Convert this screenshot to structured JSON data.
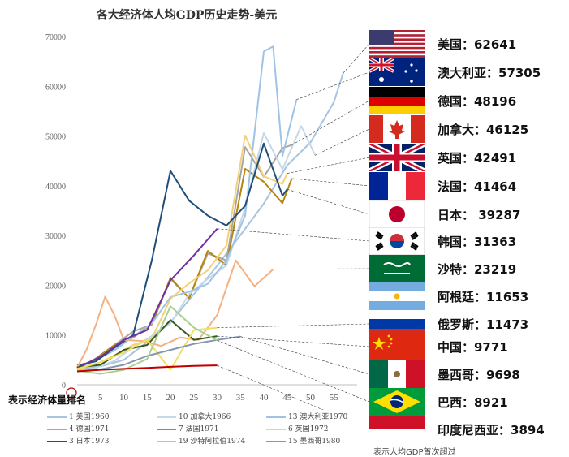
{
  "chart_data": {
    "type": "line",
    "title": "各大经济体人均GDP历史走势-美元",
    "y_ticks": [
      "0",
      "10000",
      "20000",
      "30000",
      "40000",
      "50000",
      "60000",
      "70000"
    ],
    "x_ticks": [
      "5",
      "10",
      "15",
      "20",
      "25",
      "30",
      "35",
      "40",
      "45",
      "50",
      "55"
    ],
    "xlim": [
      0,
      60
    ],
    "ylim": [
      0,
      70000
    ],
    "rank_note": "表示经济体量排名",
    "series": [
      {
        "name": "1 美国1960",
        "color": "#a8c4e0",
        "x": [
          0,
          5,
          10,
          15,
          20,
          25,
          30,
          35,
          40,
          45,
          50,
          55,
          57
        ],
        "y": [
          3000,
          3700,
          5000,
          8600,
          12600,
          18200,
          23900,
          30100,
          36400,
          44100,
          48700,
          56800,
          62641
        ]
      },
      {
        "name": "4 德国1971",
        "color": "#a6a6a6",
        "x": [
          0,
          4,
          8,
          12,
          16,
          20,
          24,
          28,
          32,
          36,
          40,
          44,
          46
        ],
        "y": [
          3000,
          5300,
          8000,
          10700,
          12100,
          21300,
          17400,
          26400,
          25000,
          47800,
          41800,
          47600,
          48196
        ]
      },
      {
        "name": "7 法国1971",
        "color": "#b8860b",
        "x": [
          0,
          4,
          8,
          12,
          16,
          20,
          24,
          28,
          32,
          36,
          40,
          44,
          46
        ],
        "y": [
          3400,
          5200,
          8000,
          9500,
          12200,
          21500,
          17400,
          26900,
          24000,
          43400,
          40800,
          36500,
          41464
        ]
      },
      {
        "name": "10 加拿大1966",
        "color": "#c5d8ea",
        "x": [
          0,
          4,
          8,
          12,
          16,
          20,
          24,
          28,
          32,
          36,
          40,
          44,
          48,
          51
        ],
        "y": [
          2700,
          3400,
          4800,
          7500,
          9800,
          12300,
          18200,
          21300,
          24000,
          35600,
          50600,
          43300,
          52000,
          46125
        ]
      },
      {
        "name": "13 澳大利亚1970",
        "color": "#9ec3e6",
        "x": [
          0,
          4,
          8,
          12,
          16,
          20,
          24,
          28,
          32,
          36,
          40,
          42,
          44,
          47
        ],
        "y": [
          3300,
          5000,
          6900,
          9700,
          12300,
          17600,
          18700,
          20300,
          25000,
          34000,
          67000,
          68000,
          46000,
          57305
        ]
      },
      {
        "name": "6 英国1972",
        "color": "#f2d17a",
        "x": [
          0,
          4,
          8,
          12,
          16,
          20,
          24,
          28,
          32,
          36,
          40,
          44,
          45
        ],
        "y": [
          3100,
          4100,
          5900,
          8000,
          9200,
          17300,
          20400,
          23000,
          28000,
          50100,
          41900,
          40400,
          42491
        ]
      },
      {
        "name": "3 日本1973",
        "color": "#1f4e79",
        "x": [
          0,
          4,
          8,
          12,
          16,
          20,
          24,
          28,
          32,
          36,
          40,
          44,
          45
        ],
        "y": [
          3900,
          4700,
          7400,
          10000,
          25000,
          43000,
          37000,
          34000,
          32000,
          36000,
          48500,
          38000,
          39287
        ]
      },
      {
        "name": "19 沙特阿拉伯1974",
        "color": "#f4b183",
        "x": [
          0,
          2,
          4,
          6,
          8,
          10,
          14,
          18,
          22,
          26,
          30,
          34,
          38,
          42
        ],
        "y": [
          3500,
          7000,
          12000,
          17700,
          14000,
          9000,
          8800,
          7800,
          9500,
          9000,
          14000,
          25000,
          19800,
          23219
        ]
      },
      {
        "name": "韩国",
        "color": "#7030a0",
        "x": [
          0,
          5,
          10,
          15,
          20,
          25,
          30
        ],
        "y": [
          3400,
          5600,
          9000,
          11000,
          21000,
          26000,
          31363
        ]
      },
      {
        "name": "中国",
        "color": "#375623",
        "x": [
          0,
          5,
          10,
          15,
          20,
          25,
          30
        ],
        "y": [
          3500,
          4000,
          7000,
          8000,
          13000,
          9000,
          9771
        ]
      },
      {
        "name": "俄罗斯",
        "color": "#f0e060",
        "x": [
          0,
          5,
          10,
          15,
          20,
          25,
          30
        ],
        "y": [
          3200,
          4500,
          6500,
          9000,
          3000,
          11000,
          11473
        ]
      },
      {
        "name": "15 墨西哥1980",
        "color": "#8497b0",
        "x": [
          0,
          5,
          10,
          15,
          20,
          25,
          30,
          35
        ],
        "y": [
          2700,
          3100,
          4000,
          5800,
          7000,
          8200,
          9000,
          9698
        ]
      },
      {
        "name": "巴西",
        "color": "#a9d18e",
        "x": [
          0,
          5,
          10,
          15,
          20,
          25,
          30
        ],
        "y": [
          2800,
          2200,
          3000,
          5200,
          15800,
          11500,
          8921
        ]
      },
      {
        "name": "印度尼西亚",
        "color": "#c00000",
        "x": [
          0,
          5,
          10,
          15,
          20,
          25,
          30
        ],
        "y": [
          2700,
          3000,
          3200,
          3400,
          3600,
          3800,
          3894
        ]
      }
    ],
    "countries": [
      {
        "label": "美国：62641"
      },
      {
        "label": "澳大利亚：57305"
      },
      {
        "label": "德国：48196"
      },
      {
        "label": "加拿大：46125"
      },
      {
        "label": "英国：42491"
      },
      {
        "label": "法国：41464"
      },
      {
        "label": "日本： 39287"
      },
      {
        "label": "韩国：31363"
      },
      {
        "label": "沙特：23219"
      },
      {
        "label": "阿根廷：11653"
      },
      {
        "label": "俄罗斯：11473"
      },
      {
        "label": "中国：9771"
      },
      {
        "label": "墨西哥：9698"
      },
      {
        "label": "巴西：8921"
      },
      {
        "label": "印度尼西亚：3894"
      }
    ],
    "legend": [
      {
        "label": "1 美国1960",
        "color": "#a8c4e0"
      },
      {
        "label": "10 加拿大1966",
        "color": "#c5d8ea"
      },
      {
        "label": "13 澳大利亚1970",
        "color": "#9ec3e6"
      },
      {
        "label": "4 德国1971",
        "color": "#a6a6a6"
      },
      {
        "label": "7 法国1971",
        "color": "#b8860b"
      },
      {
        "label": "6 英国1972",
        "color": "#f2d17a"
      },
      {
        "label": "3 日本1973",
        "color": "#1f4e79"
      },
      {
        "label": "19 沙特阿拉伯1974",
        "color": "#f4b183"
      },
      {
        "label": "15 墨西哥1980",
        "color": "#8497b0"
      }
    ],
    "footer": "表示人均GDP首次超过"
  }
}
